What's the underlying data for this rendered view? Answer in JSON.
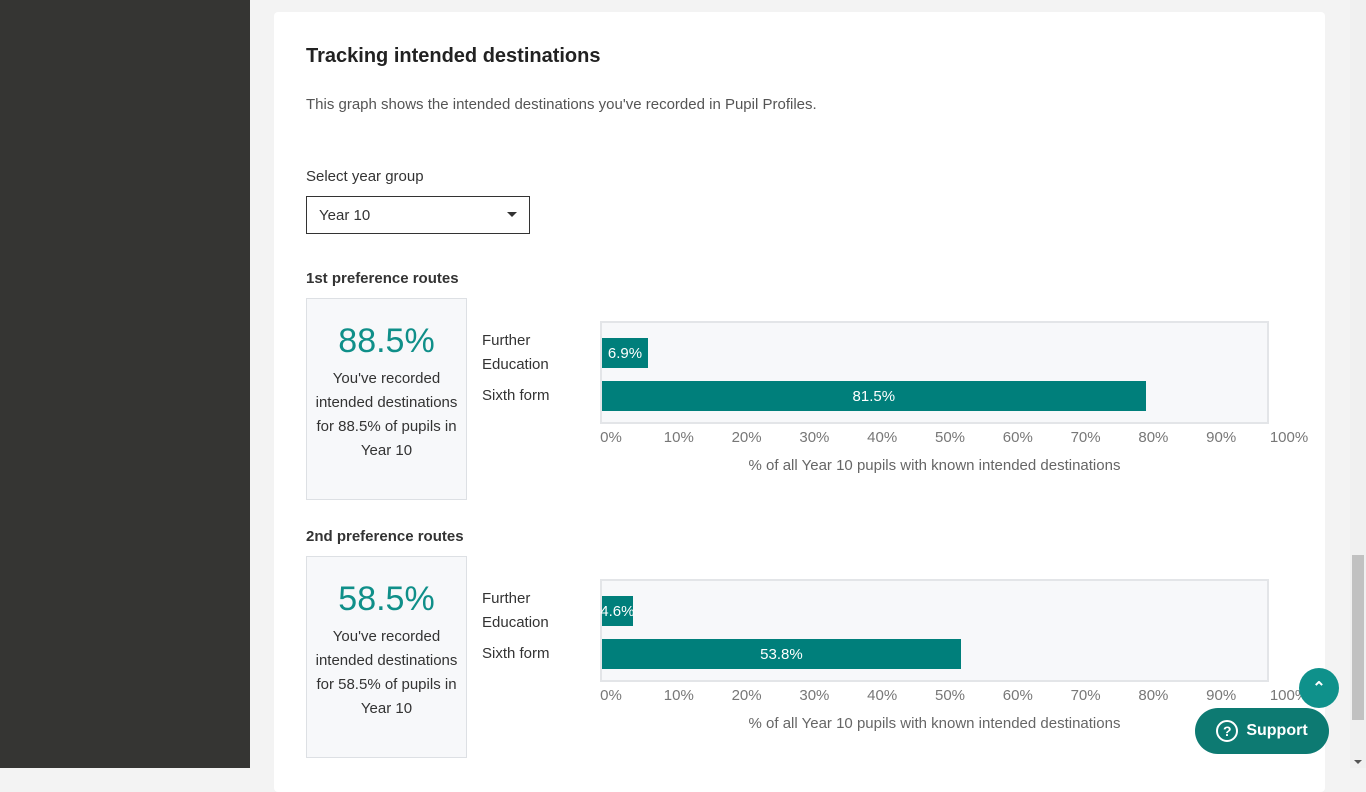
{
  "title": "Tracking intended destinations",
  "description": "This graph shows the intended destinations you've recorded in Pupil Profiles.",
  "year_select": {
    "label": "Select year group",
    "value": "Year 10"
  },
  "colors": {
    "bar": "#007f7b",
    "accent": "#0f8f89"
  },
  "buttons": {
    "support": "Support",
    "support_icon": "question-circle-icon",
    "top_icon": "chevron-up-icon"
  },
  "sections": [
    {
      "heading": "1st preference routes",
      "stat": "88.5%",
      "stat_text": "You've recorded intended destinations for 88.5% of pupils in Year 10"
    },
    {
      "heading": "2nd preference routes",
      "stat": "58.5%",
      "stat_text": "You've recorded intended destinations for 58.5% of pupils in Year 10"
    }
  ],
  "chart_data": [
    {
      "type": "bar",
      "orientation": "horizontal",
      "categories": [
        "Further Education",
        "Sixth form"
      ],
      "values": [
        6.9,
        81.5
      ],
      "labels": [
        "6.9%",
        "81.5%"
      ],
      "xlabel": "% of all Year 10 pupils with known intended destinations",
      "xlim": [
        0,
        100
      ],
      "ticks": [
        "0%",
        "10%",
        "20%",
        "30%",
        "40%",
        "50%",
        "60%",
        "70%",
        "80%",
        "90%",
        "100%"
      ]
    },
    {
      "type": "bar",
      "orientation": "horizontal",
      "categories": [
        "Further Education",
        "Sixth form"
      ],
      "values": [
        4.6,
        53.8
      ],
      "labels": [
        "4.6%",
        "53.8%"
      ],
      "xlabel": "% of all Year 10 pupils with known intended destinations",
      "xlim": [
        0,
        100
      ],
      "ticks": [
        "0%",
        "10%",
        "20%",
        "30%",
        "40%",
        "50%",
        "60%",
        "70%",
        "80%",
        "90%",
        "100%"
      ]
    }
  ]
}
